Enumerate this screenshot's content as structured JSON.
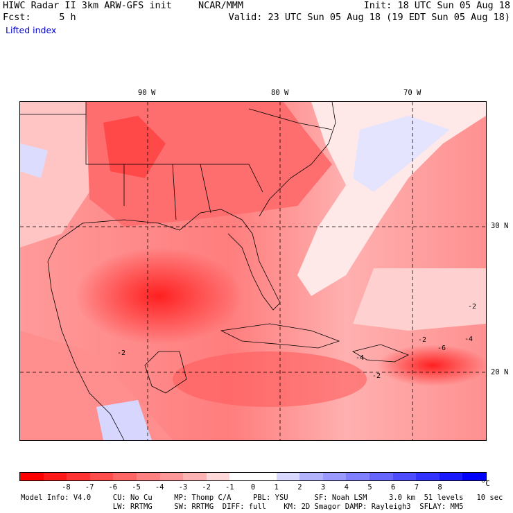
{
  "header": {
    "line1_left": "HIWC Radar II 3km ARW-GFS init",
    "line1_mid": "NCAR/MMM",
    "line1_right": "Init: 18 UTC Sun 05 Aug 18",
    "line2_left": "Fcst:     5 h",
    "line2_right": "Valid: 23 UTC Sun 05 Aug 18 (19 EDT Sun 05 Aug 18)",
    "field": "Lifted index"
  },
  "map": {
    "lon_labels": [
      "90 W",
      "80 W",
      "70 W"
    ],
    "lat_labels": [
      "30 N",
      "20 N"
    ],
    "contour_labels": [
      "-2",
      "-2",
      "-4",
      "-6",
      "-2",
      "-4",
      "-2"
    ]
  },
  "colorbar": {
    "ticks": [
      "-8",
      "-7",
      "-6",
      "-5",
      "-4",
      "-3",
      "-2",
      "-1",
      "0",
      "1",
      "2",
      "3",
      "4",
      "5",
      "6",
      "7",
      "8"
    ],
    "unit": "°C",
    "colors": [
      "#ff0000",
      "#ff1a1a",
      "#ff3333",
      "#ff4d4d",
      "#ff6666",
      "#ff8080",
      "#ff9999",
      "#ffb3b3",
      "#ffd9d9",
      "#ffffff",
      "#ffffff",
      "#d9d9ff",
      "#b3b3ff",
      "#9999ff",
      "#8080ff",
      "#6666ff",
      "#4d4dff",
      "#3333ff",
      "#1a1aff",
      "#0000ff"
    ]
  },
  "footer": {
    "line1": "Model Info: V4.0     CU: No Cu     MP: Thomp C/A     PBL: YSU      SF: Noah LSM     3.0 km  51 levels   10 sec",
    "line2": "                     LW: RRTMG     SW: RRTMG  DIFF: full    KM: 2D Smagor DAMP: Rayleigh3  SFLAY: MM5"
  }
}
